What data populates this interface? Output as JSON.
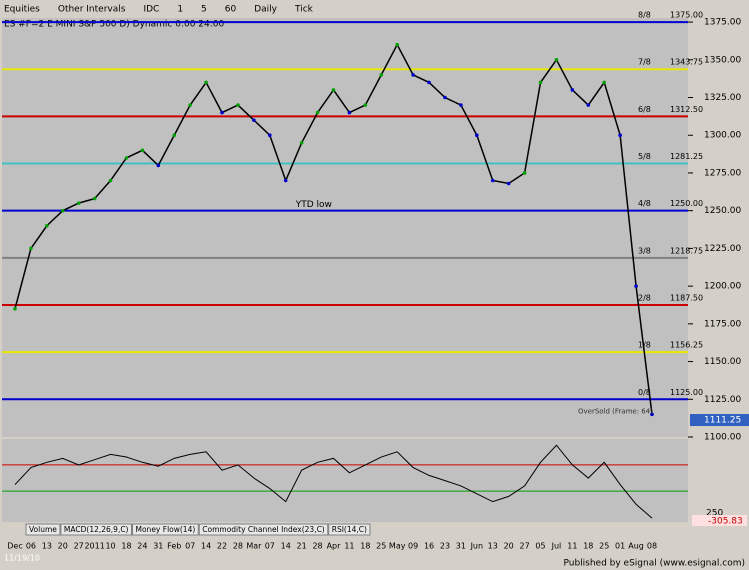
{
  "chart_data": {
    "type": "line",
    "title": "ES #F=2  E MINI S&P 500 D) Dynamic 0:00 24:00",
    "categories": [
      "Dec",
      "06",
      "13",
      "20",
      "27",
      "2011",
      "10",
      "18",
      "24",
      "31",
      "Feb",
      "07",
      "14",
      "22",
      "28",
      "Mar",
      "07",
      "14",
      "21",
      "28",
      "Apr",
      "11",
      "18",
      "25",
      "May",
      "09",
      "16",
      "23",
      "31",
      "Jun",
      "13",
      "20",
      "27",
      "05",
      "Jul",
      "11",
      "18",
      "25",
      "01",
      "Aug",
      "08"
    ],
    "series": [
      {
        "color": "#000000",
        "values": [
          1185,
          1225,
          1240,
          1250,
          1255,
          1258,
          1270,
          1285,
          1290,
          1280,
          1300,
          1320,
          1335,
          1315,
          1320,
          1310,
          1300,
          1270,
          1295,
          1315,
          1330,
          1315,
          1320,
          1340,
          1360,
          1340,
          1335,
          1325,
          1320,
          1300,
          1270,
          1268,
          1275,
          1335,
          1350,
          1330,
          1320,
          1335,
          1300,
          1200,
          1115
        ]
      }
    ],
    "ylim": [
      1100,
      1383
    ],
    "yticks": [
      {
        "value": 1100,
        "label": "1100.00"
      },
      {
        "value": 1125,
        "label": "1125.00"
      },
      {
        "value": 1150,
        "label": "1150.00"
      },
      {
        "value": 1175,
        "label": "1175.00"
      },
      {
        "value": 1200,
        "label": "1200.00"
      },
      {
        "value": 1225,
        "label": "1225.00"
      },
      {
        "value": 1250,
        "label": "1250.00"
      },
      {
        "value": 1275,
        "label": "1275.00"
      },
      {
        "value": 1300,
        "label": "1300.00"
      },
      {
        "value": 1325,
        "label": "1325.00"
      },
      {
        "value": 1350,
        "label": "1350.00"
      },
      {
        "value": 1375,
        "label": "1375.00"
      }
    ],
    "levels": [
      {
        "name": "8/8",
        "value": 1375,
        "label": "1375.00",
        "color": "#0000cc"
      },
      {
        "name": "7/8",
        "value": 1343.75,
        "label": "1343.75",
        "color": "#e8e800"
      },
      {
        "name": "6/8",
        "value": 1312.5,
        "label": "1312.50",
        "color": "#cc0000"
      },
      {
        "name": "5/8",
        "value": 1281.25,
        "label": "1281.25",
        "color": "#40c0c0"
      },
      {
        "name": "4/8",
        "value": 1250,
        "label": "1250.00",
        "color": "#0000cc"
      },
      {
        "name": "3/8",
        "value": 1218.75,
        "label": "1218.75",
        "color": "#808080"
      },
      {
        "name": "2/8",
        "value": 1187.5,
        "label": "1187.50",
        "color": "#cc0000"
      },
      {
        "name": "1/8",
        "value": 1156.25,
        "label": "1156.25",
        "color": "#e8e800"
      },
      {
        "name": "0/8",
        "value": 1125,
        "label": "1125.00",
        "color": "#0000cc"
      }
    ],
    "annotation": "YTD low",
    "oversold_note": "OverSold (Frame: 64)",
    "last_price": 1111.25,
    "oscillator": {
      "values": [
        -50,
        80,
        120,
        150,
        100,
        140,
        180,
        160,
        120,
        90,
        150,
        180,
        200,
        60,
        100,
        0,
        -80,
        -180,
        60,
        120,
        150,
        40,
        100,
        160,
        200,
        80,
        20,
        -20,
        -60,
        -120,
        -180,
        -140,
        -60,
        120,
        250,
        100,
        0,
        120,
        -50,
        -200,
        -305.83
      ],
      "color": "#000000",
      "ylim": [
        -320,
        290
      ],
      "levels": [
        100,
        -100
      ],
      "tick_label": "250",
      "last_label": "-305.83"
    }
  },
  "ui": {
    "toolbar": [
      "Equities",
      "Other Intervals",
      "IDC",
      "1",
      "5",
      "60",
      "Daily",
      "Tick"
    ],
    "tabs": [
      "Volume",
      "MACD(12,26,9,C)",
      "Money Flow(14)",
      "Commodity Channel Index(23,C)",
      "RSI(14,C)"
    ],
    "start_date": "11/19/10",
    "footer": "Published by eSignal (www.esignal.com)"
  }
}
